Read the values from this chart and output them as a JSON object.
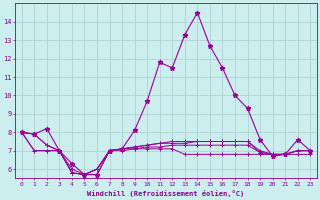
{
  "xlabel": "Windchill (Refroidissement éolien,°C)",
  "x": [
    0,
    1,
    2,
    3,
    4,
    5,
    6,
    7,
    8,
    9,
    10,
    11,
    12,
    13,
    14,
    15,
    16,
    17,
    18,
    19,
    20,
    21,
    22,
    23
  ],
  "main_line": [
    8.0,
    7.9,
    8.2,
    7.0,
    6.3,
    5.7,
    5.7,
    7.0,
    7.1,
    8.1,
    9.7,
    11.8,
    11.5,
    13.3,
    14.5,
    12.7,
    11.5,
    10.0,
    9.3,
    7.6,
    6.7,
    6.8,
    7.6,
    7.0
  ],
  "flat_lines": [
    [
      8.0,
      7.9,
      7.3,
      7.0,
      5.8,
      5.7,
      6.0,
      7.0,
      7.1,
      7.2,
      7.3,
      7.4,
      7.5,
      7.5,
      7.5,
      7.5,
      7.5,
      7.5,
      7.5,
      7.0,
      6.8,
      6.8,
      7.0,
      7.0
    ],
    [
      8.0,
      7.9,
      7.3,
      7.0,
      5.8,
      5.7,
      6.0,
      7.0,
      7.1,
      7.2,
      7.3,
      7.4,
      7.4,
      7.4,
      7.5,
      7.5,
      7.5,
      7.5,
      7.5,
      6.9,
      6.8,
      6.8,
      7.0,
      7.0
    ],
    [
      8.0,
      7.0,
      7.0,
      7.0,
      6.0,
      5.7,
      5.7,
      7.0,
      7.0,
      7.1,
      7.1,
      7.1,
      7.1,
      6.8,
      6.8,
      6.8,
      6.8,
      6.8,
      6.8,
      6.8,
      6.8,
      6.8,
      6.8,
      6.8
    ],
    [
      8.0,
      7.0,
      7.0,
      7.0,
      5.8,
      5.7,
      6.0,
      7.0,
      7.1,
      7.1,
      7.2,
      7.2,
      7.3,
      7.3,
      7.3,
      7.3,
      7.3,
      7.3,
      7.3,
      6.9,
      6.8,
      6.8,
      7.0,
      7.0
    ]
  ],
  "line_color": "#990099",
  "bg_color": "#cceeee",
  "grid_color": "#aacccc",
  "text_color": "#880088",
  "ylim": [
    5.5,
    15.0
  ],
  "yticks": [
    6,
    7,
    8,
    9,
    10,
    11,
    12,
    13,
    14
  ],
  "xlim": [
    -0.5,
    23.5
  ]
}
